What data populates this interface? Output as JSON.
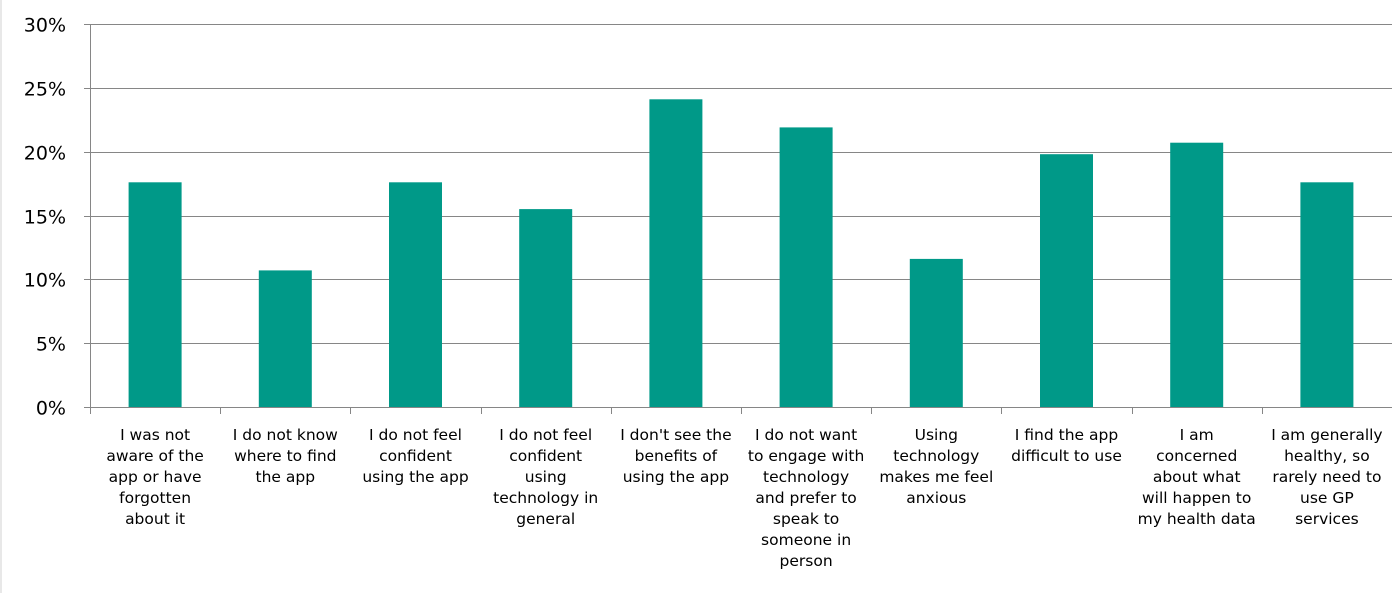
{
  "chart_data": {
    "type": "bar",
    "categories": [
      [
        "I was not",
        "aware of the",
        "app or have",
        "forgotten",
        "about it"
      ],
      [
        "I do not know",
        "where to find",
        "the app"
      ],
      [
        "I do not feel",
        "confident",
        "using the app"
      ],
      [
        "I do not feel",
        "confident",
        "using",
        "technology in",
        "general"
      ],
      [
        "I don't see the",
        "benefits of",
        "using the app"
      ],
      [
        "I do not want",
        "to engage with",
        "technology",
        "and prefer to",
        "speak to",
        "someone in",
        "person"
      ],
      [
        "Using",
        "technology",
        "makes me feel",
        "anxious"
      ],
      [
        "I find the app",
        "difficult to use"
      ],
      [
        "I am",
        "concerned",
        "about what",
        "will happen to",
        "my health data"
      ],
      [
        "I am generally",
        "healthy, so",
        "rarely need to",
        "use GP",
        "services"
      ]
    ],
    "values": [
      17.6,
      10.7,
      17.6,
      15.5,
      24.1,
      21.9,
      11.6,
      19.8,
      20.7,
      17.6
    ],
    "ylim": [
      0,
      30
    ],
    "yticks": [
      0,
      5,
      10,
      15,
      20,
      25,
      30
    ],
    "ytick_labels": [
      "0%",
      "5%",
      "10%",
      "15%",
      "20%",
      "25%",
      "30%"
    ],
    "title": "",
    "xlabel": "",
    "ylabel": "",
    "grid": true,
    "bar_color": "#009988",
    "grid_color": "#868686",
    "axis_color": "#868686"
  }
}
